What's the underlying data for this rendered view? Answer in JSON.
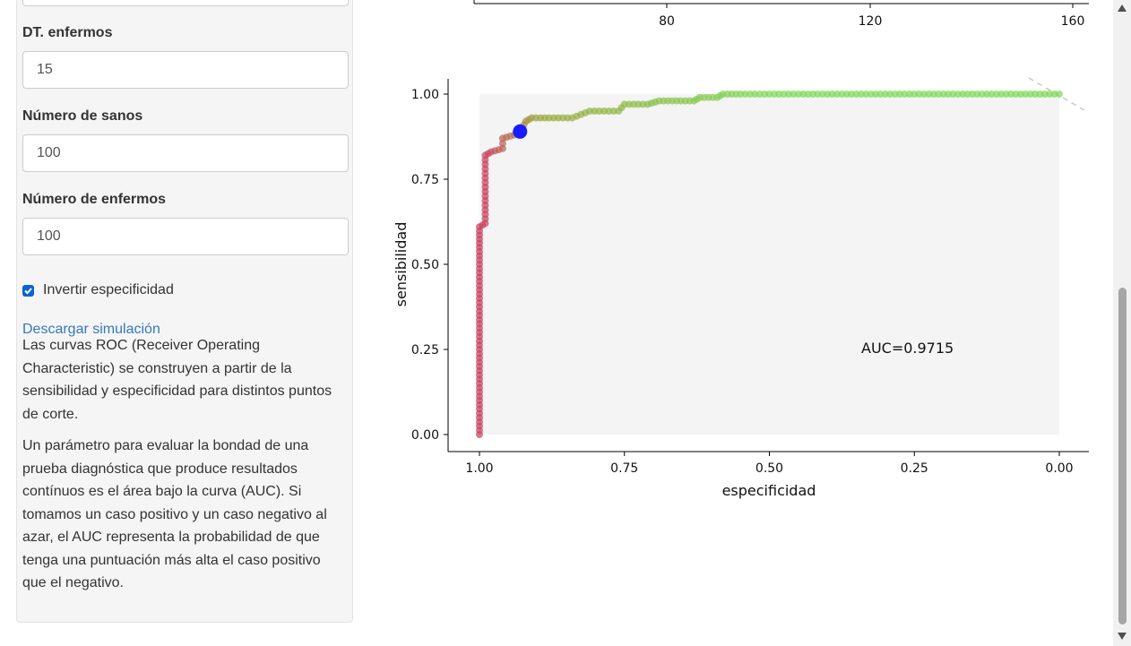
{
  "sidebar": {
    "fields": [
      {
        "label": "DT. enfermos",
        "value": "15"
      },
      {
        "label": "Número de sanos",
        "value": "100"
      },
      {
        "label": "Número de enfermos",
        "value": "100"
      }
    ],
    "checkbox_label": "Invertir especificidad",
    "checkbox_checked": true,
    "download_link": "Descargar simulación",
    "paragraph1": "Las curvas ROC (Receiver Operating Characteristic) se construyen a partir de la sensibilidad y especificidad para distintos puntos de corte.",
    "paragraph2": "Un parámetro para evaluar la bondad de una prueba diagnóstica que produce resultados contínuos es el área bajo la curva (AUC). Si tomamos un caso positivo y un caso negativo al azar, el AUC representa la probabilidad de que tenga una puntuación más alta el caso positivo que el negativo."
  },
  "top_chart": {
    "x_ticks": [
      "80",
      "120",
      "160"
    ]
  },
  "colors": {
    "low": "#c8405e",
    "mid": "#9aa63a",
    "high": "#7fd95a",
    "highlight": "#1a1aff",
    "panel": "#f4f4f4"
  },
  "chart_data": {
    "type": "scatter",
    "xlabel": "especificidad",
    "ylabel": "sensibilidad",
    "x_reversed": true,
    "xlim": [
      1.0,
      0.0
    ],
    "ylim": [
      0.0,
      1.0
    ],
    "x_ticks": [
      "1.00",
      "0.75",
      "0.50",
      "0.25",
      "0.00"
    ],
    "y_ticks": [
      "0.00",
      "0.25",
      "0.50",
      "0.75",
      "1.00"
    ],
    "annotation": "AUC=0.9715",
    "highlight_point": {
      "especificidad": 0.93,
      "sensibilidad": 0.89
    },
    "curve": [
      [
        1.0,
        0.0
      ],
      [
        1.0,
        0.05
      ],
      [
        1.0,
        0.1
      ],
      [
        1.0,
        0.15
      ],
      [
        1.0,
        0.2
      ],
      [
        1.0,
        0.25
      ],
      [
        1.0,
        0.3
      ],
      [
        1.0,
        0.35
      ],
      [
        1.0,
        0.4
      ],
      [
        1.0,
        0.45
      ],
      [
        1.0,
        0.5
      ],
      [
        1.0,
        0.55
      ],
      [
        1.0,
        0.61
      ],
      [
        0.99,
        0.62
      ],
      [
        0.99,
        0.66
      ],
      [
        0.99,
        0.7
      ],
      [
        0.99,
        0.74
      ],
      [
        0.99,
        0.78
      ],
      [
        0.99,
        0.82
      ],
      [
        0.98,
        0.83
      ],
      [
        0.96,
        0.84
      ],
      [
        0.96,
        0.87
      ],
      [
        0.94,
        0.88
      ],
      [
        0.93,
        0.89
      ],
      [
        0.92,
        0.92
      ],
      [
        0.91,
        0.93
      ],
      [
        0.88,
        0.93
      ],
      [
        0.84,
        0.93
      ],
      [
        0.81,
        0.95
      ],
      [
        0.76,
        0.95
      ],
      [
        0.75,
        0.97
      ],
      [
        0.71,
        0.97
      ],
      [
        0.69,
        0.98
      ],
      [
        0.63,
        0.98
      ],
      [
        0.62,
        0.99
      ],
      [
        0.59,
        0.99
      ],
      [
        0.58,
        1.0
      ],
      [
        0.55,
        1.0
      ],
      [
        0.5,
        1.0
      ],
      [
        0.45,
        1.0
      ],
      [
        0.4,
        1.0
      ],
      [
        0.35,
        1.0
      ],
      [
        0.3,
        1.0
      ],
      [
        0.25,
        1.0
      ],
      [
        0.2,
        1.0
      ],
      [
        0.15,
        1.0
      ],
      [
        0.1,
        1.0
      ],
      [
        0.05,
        1.0
      ],
      [
        0.0,
        1.0
      ]
    ]
  }
}
